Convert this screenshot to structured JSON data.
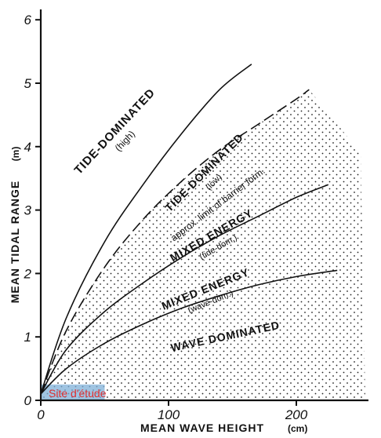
{
  "chart_data": {
    "type": "line",
    "title": "",
    "xlabel": "MEAN WAVE HEIGHT",
    "xunit": "(cm)",
    "ylabel": "MEAN TIDAL RANGE",
    "yunit": "(m)",
    "xlim": [
      0,
      260
    ],
    "ylim": [
      0,
      6.2
    ],
    "x_ticks": [
      0,
      100,
      200
    ],
    "y_ticks": [
      0,
      1,
      2,
      3,
      4,
      5,
      6
    ],
    "grid": false,
    "shaded_region": "stippled area right of the approx. limit of barrier formation",
    "series": [
      {
        "name": "",
        "style": "solid",
        "x": [
          0,
          20,
          50,
          80,
          110,
          140,
          165
        ],
        "y": [
          0.1,
          1.3,
          2.5,
          3.4,
          4.2,
          4.9,
          5.3
        ]
      },
      {
        "name": "",
        "style": "dashed",
        "x": [
          0,
          20,
          50,
          80,
          110,
          140,
          170,
          200,
          210
        ],
        "y": [
          0.1,
          1.1,
          2.1,
          2.85,
          3.45,
          3.95,
          4.35,
          4.75,
          4.9
        ]
      },
      {
        "name": "",
        "style": "solid",
        "x": [
          0,
          20,
          50,
          80,
          110,
          140,
          170,
          200,
          225
        ],
        "y": [
          0.1,
          0.8,
          1.4,
          1.85,
          2.25,
          2.6,
          2.9,
          3.2,
          3.4
        ]
      },
      {
        "name": "",
        "style": "solid",
        "x": [
          0,
          20,
          50,
          80,
          110,
          140,
          170,
          200,
          232
        ],
        "y": [
          0.1,
          0.5,
          0.9,
          1.2,
          1.45,
          1.65,
          1.82,
          1.95,
          2.05
        ]
      }
    ],
    "region_labels": [
      {
        "text": "TIDE-DOMINATED",
        "sub": "(high)",
        "x": 60,
        "y": 4.2,
        "angle": -47,
        "size": 15
      },
      {
        "text": "TIDE-DOMINATED",
        "sub": "(low)",
        "x": 130,
        "y": 3.55,
        "angle": -45,
        "size": 14
      },
      {
        "text": "approx. limit of barrier form.",
        "sub": "",
        "x": 140,
        "y": 3.05,
        "angle": -37,
        "size": 12
      },
      {
        "text": "MIXED ENERGY",
        "sub": "(tide-dom.)",
        "x": 135,
        "y": 2.55,
        "angle": -30,
        "size": 14
      },
      {
        "text": "MIXED ENERGY",
        "sub": "(wave-dom.)",
        "x": 130,
        "y": 1.7,
        "angle": -22,
        "size": 14
      },
      {
        "text": "WAVE DOMINATED",
        "sub": "",
        "x": 145,
        "y": 0.95,
        "angle": -12,
        "size": 14
      }
    ],
    "annotation": {
      "text": "Site d'étude",
      "x_range": [
        0,
        50
      ],
      "y_range": [
        0,
        0.25
      ]
    }
  }
}
